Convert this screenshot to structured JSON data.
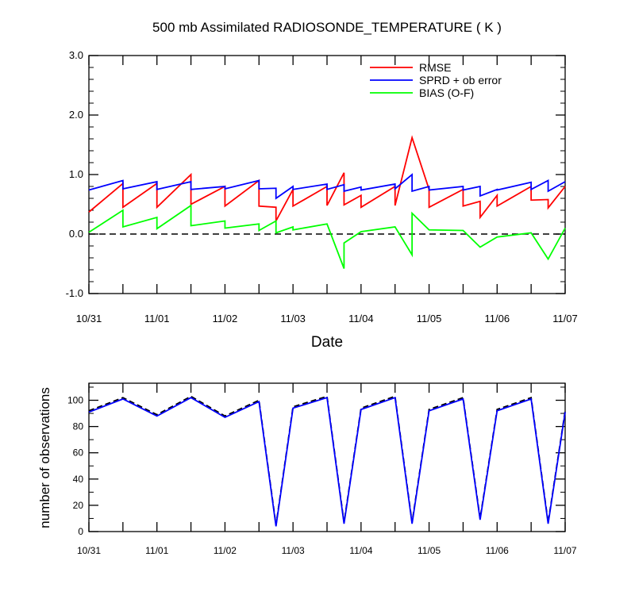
{
  "figure": {
    "title": "500 mb Assimilated RADIOSONDE_TEMPERATURE ( K )",
    "xlabel": "Date",
    "lower_ylabel": "number of observations"
  },
  "chart_data": [
    {
      "type": "line",
      "title": "500 mb Assimilated RADIOSONDE_TEMPERATURE ( K )",
      "xlabel": "Date",
      "ylabel": "",
      "x_unit": "days since 10/31",
      "xlim": [
        0,
        7
      ],
      "ylim": [
        -1.0,
        3.0
      ],
      "x_ticks": [
        0,
        1,
        2,
        3,
        4,
        5,
        6,
        7
      ],
      "x_tick_labels": [
        "10/31",
        "11/01",
        "11/02",
        "11/03",
        "11/04",
        "11/05",
        "11/06",
        "11/07"
      ],
      "y_ticks": [
        -1.0,
        0.0,
        1.0,
        2.0,
        3.0
      ],
      "y_tick_labels": [
        "-1.0",
        "0.0",
        "1.0",
        "2.0",
        "3.0"
      ],
      "legend_position": "top-right",
      "reference_line": {
        "y": 0.0,
        "style": "dashed",
        "color": "#000000"
      },
      "series": [
        {
          "name": "RMSE",
          "color": "#ff0000",
          "points": [
            [
              0,
              0.37
            ],
            [
              0.5,
              0.85
            ],
            [
              0.5,
              0.45
            ],
            [
              1,
              0.85
            ],
            [
              1,
              0.45
            ],
            [
              1.5,
              1.0
            ],
            [
              1.5,
              0.5
            ],
            [
              2,
              0.8
            ],
            [
              2,
              0.47
            ],
            [
              2.5,
              0.9
            ],
            [
              2.5,
              0.47
            ],
            [
              2.75,
              0.45
            ],
            [
              2.75,
              0.22
            ],
            [
              3,
              0.75
            ],
            [
              3,
              0.47
            ],
            [
              3.5,
              0.8
            ],
            [
              3.5,
              0.48
            ],
            [
              3.75,
              1.03
            ],
            [
              3.75,
              0.49
            ],
            [
              4,
              0.65
            ],
            [
              4,
              0.45
            ],
            [
              4.5,
              0.8
            ],
            [
              4.5,
              0.48
            ],
            [
              4.75,
              1.62
            ],
            [
              5,
              0.75
            ],
            [
              5,
              0.45
            ],
            [
              5.5,
              0.75
            ],
            [
              5.5,
              0.47
            ],
            [
              5.75,
              0.55
            ],
            [
              5.75,
              0.28
            ],
            [
              6,
              0.65
            ],
            [
              6,
              0.47
            ],
            [
              6.5,
              0.8
            ],
            [
              6.5,
              0.57
            ],
            [
              6.75,
              0.58
            ],
            [
              6.75,
              0.44
            ],
            [
              7,
              0.8
            ]
          ]
        },
        {
          "name": "SPRD + ob error",
          "color": "#0000ff",
          "points": [
            [
              0,
              0.74
            ],
            [
              0.5,
              0.9
            ],
            [
              0.5,
              0.76
            ],
            [
              1,
              0.88
            ],
            [
              1,
              0.75
            ],
            [
              1.5,
              0.88
            ],
            [
              1.5,
              0.75
            ],
            [
              2,
              0.8
            ],
            [
              2,
              0.76
            ],
            [
              2.5,
              0.9
            ],
            [
              2.5,
              0.76
            ],
            [
              2.75,
              0.77
            ],
            [
              2.75,
              0.6
            ],
            [
              3,
              0.8
            ],
            [
              3,
              0.75
            ],
            [
              3.5,
              0.84
            ],
            [
              3.5,
              0.75
            ],
            [
              3.75,
              0.83
            ],
            [
              3.75,
              0.72
            ],
            [
              4,
              0.79
            ],
            [
              4,
              0.74
            ],
            [
              4.5,
              0.84
            ],
            [
              4.5,
              0.76
            ],
            [
              4.75,
              1.0
            ],
            [
              4.75,
              0.72
            ],
            [
              5,
              0.8
            ],
            [
              5,
              0.74
            ],
            [
              5.5,
              0.8
            ],
            [
              5.5,
              0.74
            ],
            [
              5.75,
              0.8
            ],
            [
              5.75,
              0.64
            ],
            [
              6,
              0.75
            ],
            [
              6,
              0.74
            ],
            [
              6.5,
              0.87
            ],
            [
              6.5,
              0.75
            ],
            [
              6.75,
              0.9
            ],
            [
              6.75,
              0.72
            ],
            [
              7,
              0.88
            ]
          ]
        },
        {
          "name": "BIAS (O-F)",
          "color": "#00ff00",
          "points": [
            [
              0,
              0.03
            ],
            [
              0.5,
              0.4
            ],
            [
              0.5,
              0.12
            ],
            [
              1,
              0.28
            ],
            [
              1,
              0.09
            ],
            [
              1.5,
              0.48
            ],
            [
              1.5,
              0.14
            ],
            [
              2,
              0.22
            ],
            [
              2,
              0.1
            ],
            [
              2.5,
              0.17
            ],
            [
              2.5,
              0.06
            ],
            [
              2.75,
              0.22
            ],
            [
              2.75,
              0.02
            ],
            [
              3,
              0.12
            ],
            [
              3,
              0.07
            ],
            [
              3.5,
              0.17
            ],
            [
              3.75,
              -0.58
            ],
            [
              3.75,
              -0.15
            ],
            [
              4,
              0.04
            ],
            [
              4.5,
              0.12
            ],
            [
              4.75,
              -0.35
            ],
            [
              4.75,
              0.35
            ],
            [
              5,
              0.07
            ],
            [
              5.5,
              0.06
            ],
            [
              5.75,
              -0.22
            ],
            [
              6,
              -0.05
            ],
            [
              6.5,
              0.02
            ],
            [
              6.75,
              -0.42
            ],
            [
              7,
              0.1
            ]
          ]
        }
      ]
    },
    {
      "type": "line",
      "title": "",
      "xlabel": "",
      "ylabel": "number of observations",
      "xlim": [
        0,
        7
      ],
      "ylim": [
        0,
        113
      ],
      "x_ticks": [
        0,
        1,
        2,
        3,
        4,
        5,
        6,
        7
      ],
      "x_tick_labels": [
        "10/31",
        "11/01",
        "11/02",
        "11/03",
        "11/04",
        "11/05",
        "11/06",
        "11/07"
      ],
      "y_ticks": [
        0,
        20,
        40,
        60,
        80,
        100
      ],
      "y_tick_labels": [
        "0",
        "20",
        "40",
        "60",
        "80",
        "100"
      ],
      "series": [
        {
          "color": "#000000",
          "dash": "dashed",
          "points": [
            [
              0,
              92
            ],
            [
              0.5,
              102
            ],
            [
              1,
              89
            ],
            [
              1.5,
              103
            ],
            [
              2,
              88
            ],
            [
              2.5,
              100
            ],
            [
              2.75,
              5
            ],
            [
              3,
              95
            ],
            [
              3.5,
              103
            ],
            [
              3.75,
              7
            ],
            [
              4,
              94
            ],
            [
              4.5,
              103
            ],
            [
              4.75,
              7
            ],
            [
              5,
              93
            ],
            [
              5.5,
              102
            ],
            [
              5.75,
              10
            ],
            [
              6,
              93
            ],
            [
              6.5,
              102
            ],
            [
              6.75,
              7
            ],
            [
              7,
              92
            ]
          ]
        },
        {
          "color": "#0000ff",
          "dash": "solid",
          "points": [
            [
              0,
              91
            ],
            [
              0.5,
              101
            ],
            [
              1,
              88
            ],
            [
              1.5,
              102
            ],
            [
              2,
              87
            ],
            [
              2.5,
              99
            ],
            [
              2.75,
              4
            ],
            [
              3,
              94
            ],
            [
              3.5,
              102
            ],
            [
              3.75,
              6
            ],
            [
              4,
              93
            ],
            [
              4.5,
              102
            ],
            [
              4.75,
              6
            ],
            [
              5,
              92
            ],
            [
              5.5,
              101
            ],
            [
              5.75,
              9
            ],
            [
              6,
              92
            ],
            [
              6.5,
              101
            ],
            [
              6.75,
              6
            ],
            [
              7,
              91
            ]
          ]
        }
      ]
    }
  ]
}
